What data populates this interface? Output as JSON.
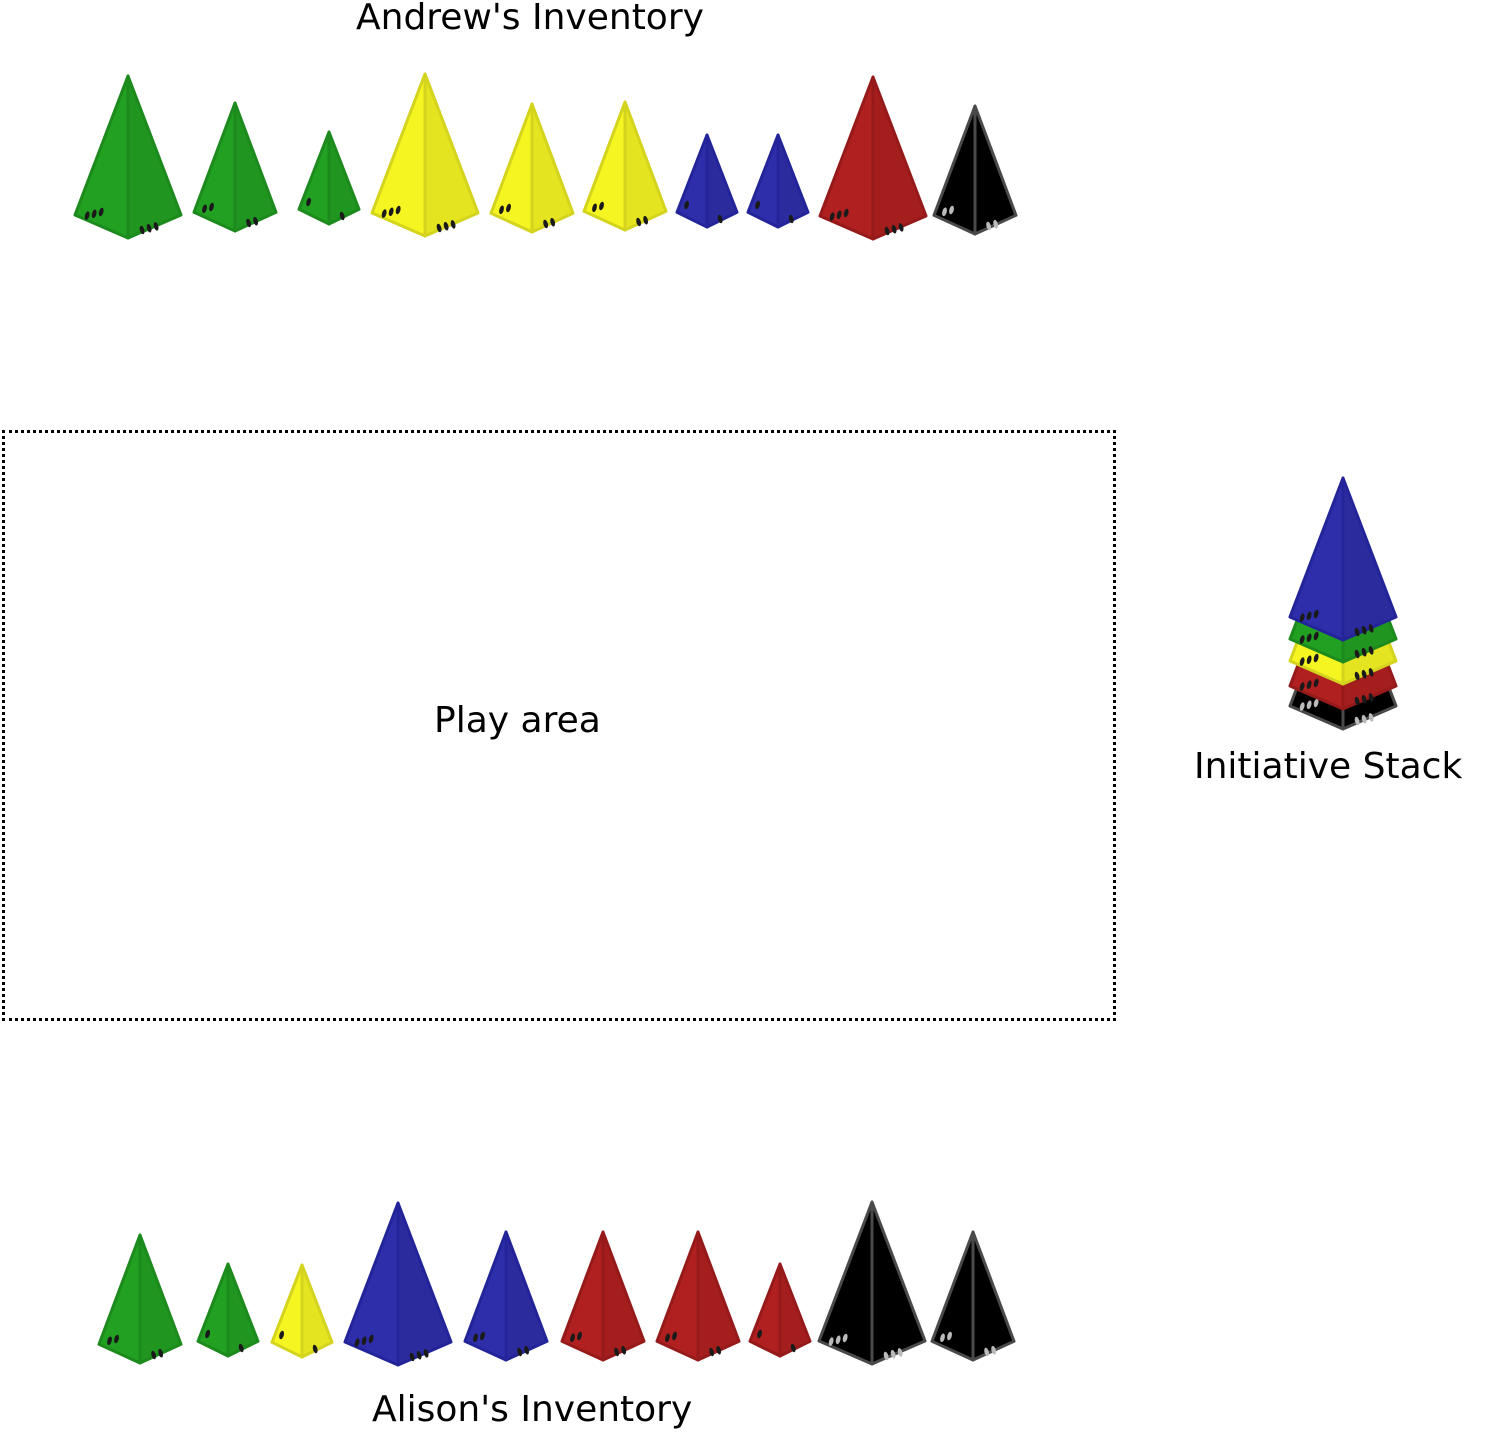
{
  "andrew": {
    "title": "Andrew's Inventory",
    "pieces": [
      {
        "color": "green",
        "size": 3,
        "pips": 3
      },
      {
        "color": "green",
        "size": 2,
        "pips": 2
      },
      {
        "color": "green",
        "size": 1,
        "pips": 1
      },
      {
        "color": "yellow",
        "size": 3,
        "pips": 3
      },
      {
        "color": "yellow",
        "size": 2,
        "pips": 2
      },
      {
        "color": "yellow",
        "size": 2,
        "pips": 2
      },
      {
        "color": "blue",
        "size": 1,
        "pips": 1
      },
      {
        "color": "blue",
        "size": 1,
        "pips": 1
      },
      {
        "color": "red",
        "size": 3,
        "pips": 3
      },
      {
        "color": "black",
        "size": 2,
        "pips": 2
      }
    ]
  },
  "alison": {
    "title": "Alison's Inventory",
    "pieces": [
      {
        "color": "green",
        "size": 2,
        "pips": 2
      },
      {
        "color": "green",
        "size": 1,
        "pips": 1
      },
      {
        "color": "yellow",
        "size": 1,
        "pips": 1
      },
      {
        "color": "blue",
        "size": 3,
        "pips": 3
      },
      {
        "color": "blue",
        "size": 2,
        "pips": 2
      },
      {
        "color": "red",
        "size": 2,
        "pips": 2
      },
      {
        "color": "red",
        "size": 2,
        "pips": 2
      },
      {
        "color": "red",
        "size": 1,
        "pips": 1
      },
      {
        "color": "black",
        "size": 3,
        "pips": 3
      },
      {
        "color": "black",
        "size": 2,
        "pips": 2
      }
    ]
  },
  "play_area": {
    "label": "Play area"
  },
  "initiative_stack": {
    "label": "Initiative Stack",
    "layers": [
      "black",
      "red",
      "yellow",
      "green",
      "blue"
    ]
  },
  "colors": {
    "green": {
      "fill": "#22a022",
      "stroke": "#1c8a1c",
      "pip": "#1a1a1a"
    },
    "yellow": {
      "fill": "#f5f522",
      "stroke": "#d4d41e",
      "pip": "#1a1a1a"
    },
    "blue": {
      "fill": "#2e2eaa",
      "stroke": "#24249a",
      "pip": "#1a1a1a"
    },
    "red": {
      "fill": "#b02020",
      "stroke": "#961a1a",
      "pip": "#1a1a1a"
    },
    "black": {
      "fill": "#000000",
      "stroke": "#4a4a4a",
      "pip": "#bbbbbb"
    }
  }
}
